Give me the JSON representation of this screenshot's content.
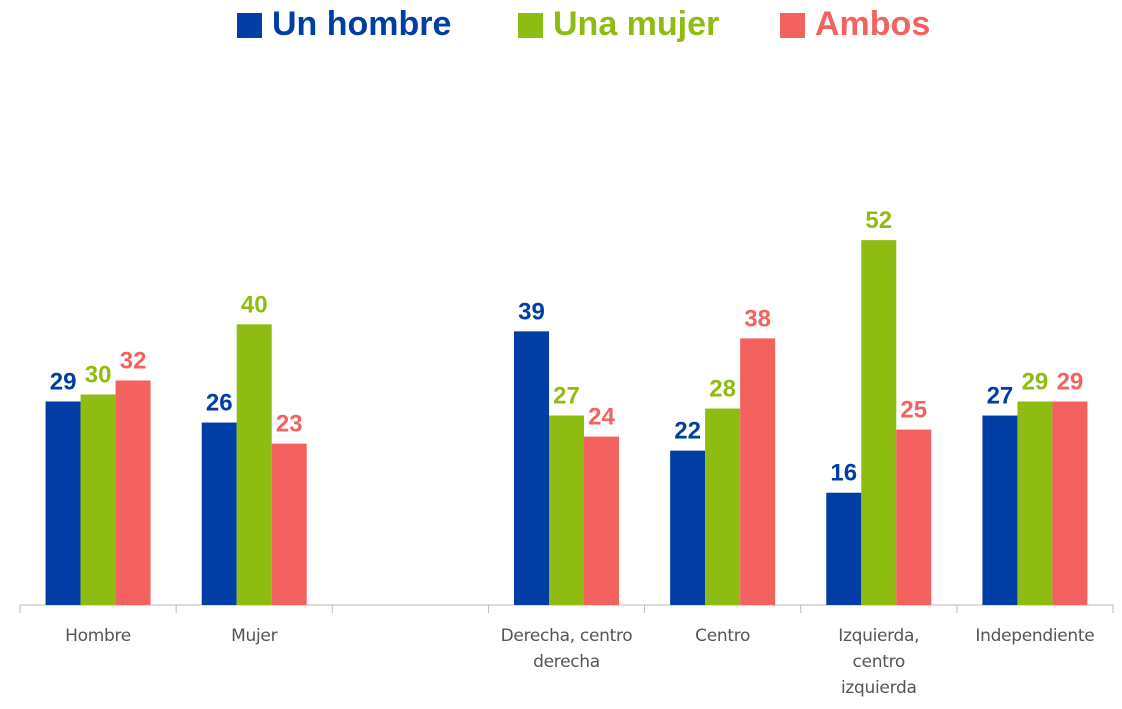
{
  "chart_data": {
    "type": "bar",
    "categories": [
      "Hombre",
      "Mujer",
      null,
      "Derecha, centro derecha",
      "Centro",
      "Izquierda, centro izquierda",
      "Independiente"
    ],
    "series": [
      {
        "name": "Un hombre",
        "color": "#003DA5",
        "values": [
          29,
          26,
          null,
          39,
          22,
          16,
          27
        ]
      },
      {
        "name": "Una mujer",
        "color": "#8FBC13",
        "values": [
          30,
          40,
          null,
          27,
          28,
          52,
          29
        ]
      },
      {
        "name": "Ambos",
        "color": "#F4625F",
        "values": [
          32,
          23,
          null,
          24,
          38,
          25,
          29
        ]
      }
    ],
    "ylim": [
      0,
      60
    ],
    "legend": "top"
  }
}
